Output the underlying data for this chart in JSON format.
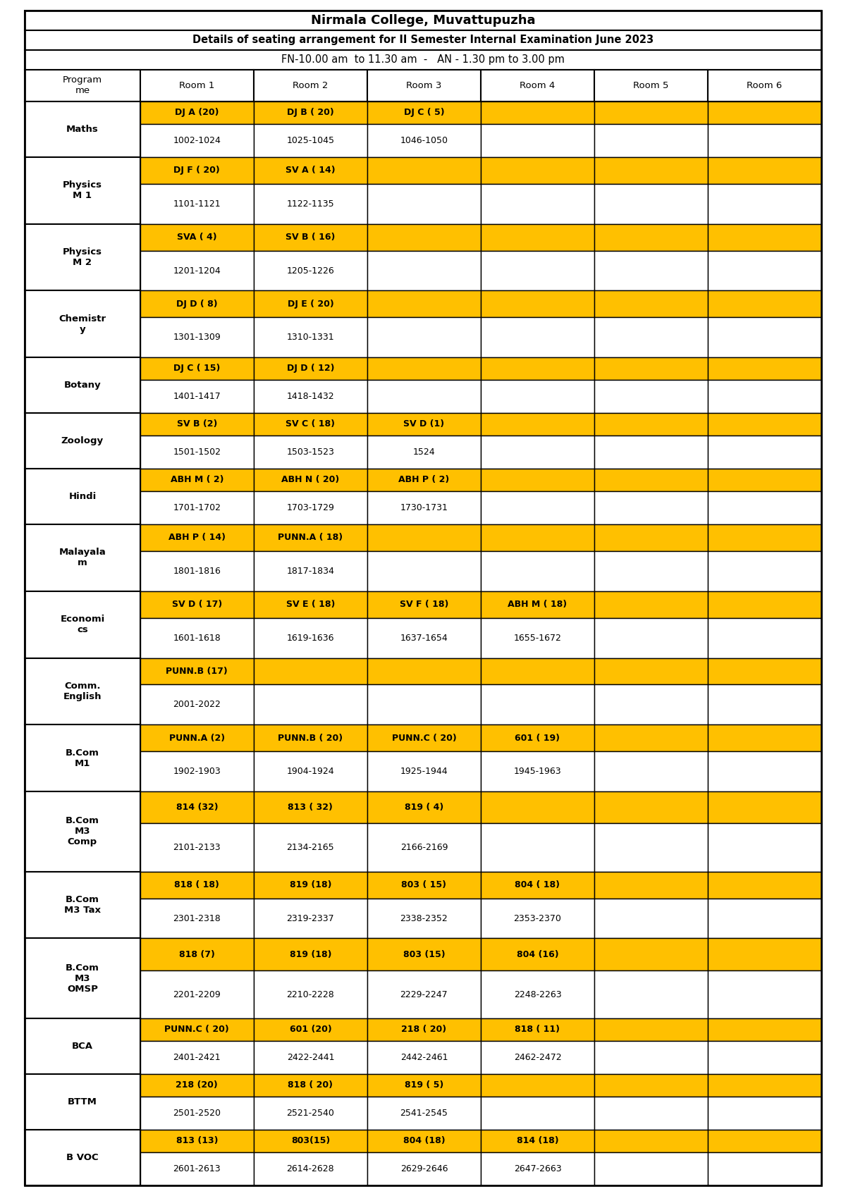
{
  "title1": "Nirmala College, Muvattupuzha",
  "title2": "Details of seating arrangement for II Semester Internal Examination June 2023",
  "title3": "FN-10.00 am  to 11.30 am  -   AN - 1.30 pm to 3.00 pm",
  "yellow": "#FFC000",
  "white": "#FFFFFF",
  "black": "#000000",
  "fig_width": 12.0,
  "fig_height": 16.97,
  "rows": [
    {
      "programme": "Maths",
      "yellow_row": [
        "DJ A (20)",
        "DJ B ( 20)",
        "DJ C ( 5)",
        "",
        "",
        ""
      ],
      "white_row": [
        "1002-1024",
        "1025-1045",
        "1046-1050",
        "",
        "",
        ""
      ],
      "n_prog_lines": 1
    },
    {
      "programme": "Physics\nM 1",
      "yellow_row": [
        "DJ F ( 20)",
        "SV A ( 14)",
        "",
        "",
        "",
        ""
      ],
      "white_row": [
        "1101-1121",
        "1122-1135",
        "",
        "",
        "",
        ""
      ],
      "n_prog_lines": 2
    },
    {
      "programme": "Physics\nM 2",
      "yellow_row": [
        "SVA ( 4)",
        "SV B ( 16)",
        "",
        "",
        "",
        ""
      ],
      "white_row": [
        "1201-1204",
        "1205-1226",
        "",
        "",
        "",
        ""
      ],
      "n_prog_lines": 2
    },
    {
      "programme": "Chemistr\ny",
      "yellow_row": [
        "DJ D ( 8)",
        "DJ E ( 20)",
        "",
        "",
        "",
        ""
      ],
      "white_row": [
        "1301-1309",
        "1310-1331",
        "",
        "",
        "",
        ""
      ],
      "n_prog_lines": 2
    },
    {
      "programme": "Botany",
      "yellow_row": [
        "DJ C ( 15)",
        "DJ D ( 12)",
        "",
        "",
        "",
        ""
      ],
      "white_row": [
        "1401-1417",
        "1418-1432",
        "",
        "",
        "",
        ""
      ],
      "n_prog_lines": 1
    },
    {
      "programme": "Zoology",
      "yellow_row": [
        "SV B (2)",
        "SV C ( 18)",
        "SV D (1)",
        "",
        "",
        ""
      ],
      "white_row": [
        "1501-1502",
        "1503-1523",
        "1524",
        "",
        "",
        ""
      ],
      "n_prog_lines": 1
    },
    {
      "programme": "Hindi",
      "yellow_row": [
        "ABH M ( 2)",
        "ABH N ( 20)",
        "ABH P ( 2)",
        "",
        "",
        ""
      ],
      "white_row": [
        "1701-1702",
        "1703-1729",
        "1730-1731",
        "",
        "",
        ""
      ],
      "n_prog_lines": 1
    },
    {
      "programme": "Malayala\nm",
      "yellow_row": [
        "ABH P ( 14)",
        "PUNN.A ( 18)",
        "",
        "",
        "",
        ""
      ],
      "white_row": [
        "1801-1816",
        "1817-1834",
        "",
        "",
        "",
        ""
      ],
      "n_prog_lines": 2
    },
    {
      "programme": "Economi\ncs",
      "yellow_row": [
        "SV D ( 17)",
        "SV E ( 18)",
        "SV F ( 18)",
        "ABH M ( 18)",
        "",
        ""
      ],
      "white_row": [
        "1601-1618",
        "1619-1636",
        "1637-1654",
        "1655-1672",
        "",
        ""
      ],
      "n_prog_lines": 2
    },
    {
      "programme": "Comm.\nEnglish",
      "yellow_row": [
        "PUNN.B (17)",
        "",
        "",
        "",
        "",
        ""
      ],
      "white_row": [
        "2001-2022",
        "",
        "",
        "",
        "",
        ""
      ],
      "n_prog_lines": 2
    },
    {
      "programme": "B.Com\nM1",
      "yellow_row": [
        "PUNN.A (2)",
        "PUNN.B ( 20)",
        "PUNN.C ( 20)",
        "601 ( 19)",
        "",
        ""
      ],
      "white_row": [
        "1902-1903",
        "1904-1924",
        "1925-1944",
        "1945-1963",
        "",
        ""
      ],
      "n_prog_lines": 2
    },
    {
      "programme": "B.Com\nM3\nComp",
      "yellow_row": [
        "814 (32)",
        "813 ( 32)",
        "819 ( 4)",
        "",
        "",
        ""
      ],
      "white_row": [
        "2101-2133",
        "2134-2165",
        "2166-2169",
        "",
        "",
        ""
      ],
      "n_prog_lines": 3
    },
    {
      "programme": "B.Com\nM3 Tax",
      "yellow_row": [
        "818 ( 18)",
        "819 (18)",
        "803 ( 15)",
        "804 ( 18)",
        "",
        ""
      ],
      "white_row": [
        "2301-2318",
        "2319-2337",
        "2338-2352",
        "2353-2370",
        "",
        ""
      ],
      "n_prog_lines": 2
    },
    {
      "programme": "B.Com\nM3\nOMSP",
      "yellow_row": [
        "818 (7)",
        "819 (18)",
        "803 (15)",
        "804 (16)",
        "",
        ""
      ],
      "white_row": [
        "2201-2209",
        "2210-2228",
        "2229-2247",
        "2248-2263",
        "",
        ""
      ],
      "n_prog_lines": 3
    },
    {
      "programme": "BCA",
      "yellow_row": [
        "PUNN.C ( 20)",
        "601 (20)",
        "218 ( 20)",
        "818 ( 11)",
        "",
        ""
      ],
      "white_row": [
        "2401-2421",
        "2422-2441",
        "2442-2461",
        "2462-2472",
        "",
        ""
      ],
      "n_prog_lines": 1
    },
    {
      "programme": "BTTM",
      "yellow_row": [
        "218 (20)",
        "818 ( 20)",
        "819 ( 5)",
        "",
        "",
        ""
      ],
      "white_row": [
        "2501-2520",
        "2521-2540",
        "2541-2545",
        "",
        "",
        ""
      ],
      "n_prog_lines": 1
    },
    {
      "programme": "B VOC",
      "yellow_row": [
        "813 (13)",
        "803(15)",
        "804 (18)",
        "814 (18)",
        "",
        ""
      ],
      "white_row": [
        "2601-2613",
        "2614-2628",
        "2629-2646",
        "2647-2663",
        "",
        ""
      ],
      "n_prog_lines": 1
    }
  ]
}
